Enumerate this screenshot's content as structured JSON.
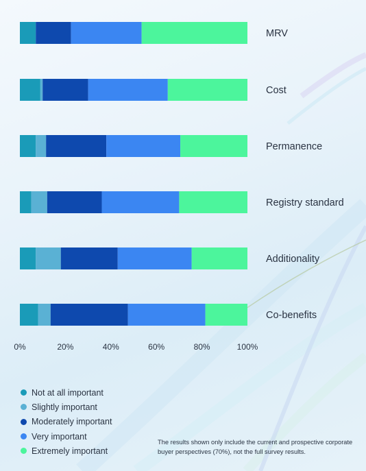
{
  "chart_data": {
    "type": "bar",
    "orientation": "horizontal",
    "stacked": true,
    "categories": [
      "MRV",
      "Cost",
      "Permanence",
      "Registry standard",
      "Additionality",
      "Co-benefits"
    ],
    "series": [
      {
        "name": "Not at all important",
        "color": "#1a9bb8",
        "values": [
          7,
          9,
          7,
          5,
          7,
          8
        ]
      },
      {
        "name": "Slightly important",
        "color": "#5ab1d4",
        "values": [
          0,
          1,
          4.5,
          7,
          11,
          5.5
        ]
      },
      {
        "name": "Moderately important",
        "color": "#0e49ae",
        "values": [
          15.5,
          20,
          26.5,
          24,
          25,
          34
        ]
      },
      {
        "name": "Very important",
        "color": "#3b86f2",
        "values": [
          31,
          35,
          32.5,
          34,
          32.5,
          34
        ]
      },
      {
        "name": "Extremely important",
        "color": "#4cf59c",
        "values": [
          46.5,
          35,
          29.5,
          30,
          24.5,
          18.5
        ]
      }
    ],
    "xlim": [
      0,
      100
    ],
    "xticks": [
      "0%",
      "20%",
      "40%",
      "60%",
      "80%",
      "100%"
    ],
    "grid": false,
    "legend_position": "bottom-left"
  },
  "note": "The results shown only include the current and prospective corporate buyer perspectives (70%), not the full survey results."
}
